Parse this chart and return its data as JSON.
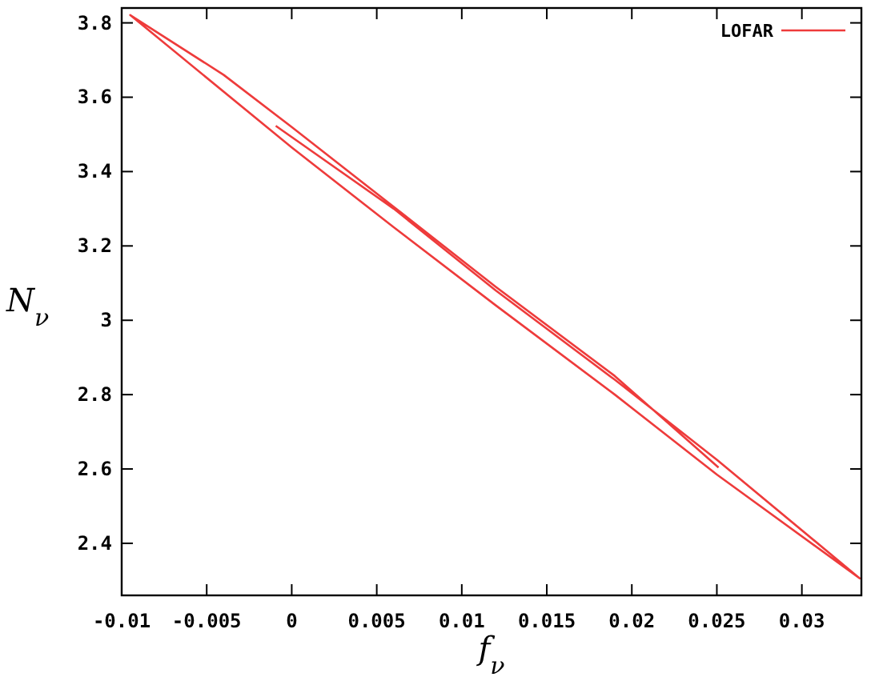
{
  "chart_data": {
    "type": "line",
    "xlabel": "f$_{ν}$",
    "ylabel": "N$_{ν}$",
    "xlim": [
      -0.01,
      0.0335
    ],
    "ylim": [
      2.26,
      3.84
    ],
    "xticks": [
      -0.01,
      -0.005,
      0,
      0.005,
      0.01,
      0.015,
      0.02,
      0.025,
      0.03
    ],
    "yticks": [
      2.4,
      2.6,
      2.8,
      3,
      3.2,
      3.4,
      3.6,
      3.8
    ],
    "legend": "top right",
    "line_style": "solid",
    "grid": false,
    "series": [
      {
        "name": "LOFAR",
        "color": "#ee3b3b",
        "x": [
          -0.00094,
          0.006,
          0.012,
          0.019,
          0.025,
          0.0334,
          0.025,
          0.019,
          0.012,
          0.006,
          0.0,
          -0.0095,
          -0.004,
          0.0,
          0.006,
          0.012,
          0.019,
          0.0251
        ],
        "values": [
          3.523,
          3.3,
          3.08,
          2.84,
          2.625,
          2.306,
          2.585,
          2.8,
          3.04,
          3.25,
          3.465,
          3.821,
          3.66,
          3.52,
          3.305,
          3.09,
          2.85,
          2.604
        ]
      }
    ]
  }
}
